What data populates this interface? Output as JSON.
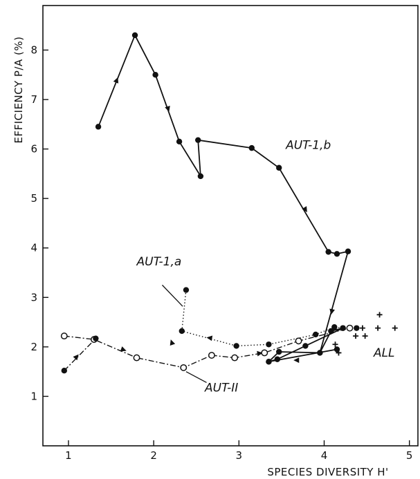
{
  "chart_data": {
    "type": "line",
    "xlabel": "SPECIES DIVERSITY H'",
    "ylabel": "EFFICIENCY P/A (%)",
    "xlim": [
      0.7,
      5.1
    ],
    "ylim": [
      0.0,
      8.9
    ],
    "x_ticks": [
      1,
      2,
      3,
      4,
      5
    ],
    "x_tick_labels": [
      "1",
      "2",
      "3",
      "4",
      "5"
    ],
    "y_ticks": [
      1,
      2,
      3,
      4,
      5,
      6,
      7,
      8
    ],
    "y_tick_labels": [
      "1",
      "2",
      "3",
      "4",
      "5",
      "6",
      "7",
      "8"
    ],
    "grid": false,
    "series": [
      {
        "name": "AUT-1,b",
        "marker": "filled-circle",
        "line_style": "solid",
        "color": "#111111",
        "points": [
          [
            1.35,
            6.45
          ],
          [
            1.78,
            8.3
          ],
          [
            2.02,
            7.5
          ],
          [
            2.3,
            6.15
          ],
          [
            2.55,
            5.45
          ],
          [
            2.52,
            6.18
          ],
          [
            3.15,
            6.02
          ],
          [
            3.47,
            5.62
          ],
          [
            4.05,
            3.92
          ],
          [
            4.15,
            3.88
          ],
          [
            4.28,
            3.93
          ],
          [
            3.95,
            1.88
          ]
        ]
      },
      {
        "name": "AUT-1,a",
        "marker": "filled-circle",
        "line_style": "dotted",
        "color": "#111111",
        "points": [
          [
            2.38,
            3.15
          ],
          [
            2.33,
            2.32
          ],
          [
            2.97,
            2.02
          ],
          [
            3.35,
            2.05
          ],
          [
            3.9,
            2.25
          ],
          [
            4.12,
            2.4
          ],
          [
            4.22,
            2.38
          ],
          [
            4.38,
            2.38
          ]
        ]
      },
      {
        "name": "AUT-II",
        "marker": "open-circle",
        "line_style": "dash-dot",
        "color": "#111111",
        "points": [
          [
            0.95,
            2.22
          ],
          [
            1.3,
            2.15
          ],
          [
            1.8,
            1.78
          ],
          [
            2.35,
            1.58
          ],
          [
            2.68,
            1.83
          ],
          [
            2.95,
            1.78
          ],
          [
            3.3,
            1.88
          ],
          [
            3.7,
            2.12
          ],
          [
            4.3,
            2.38
          ]
        ]
      },
      {
        "name": "",
        "marker": "filled-circle",
        "line_style": "dash-dot",
        "color": "#111111",
        "points": [
          [
            0.95,
            1.52
          ],
          [
            1.32,
            2.17
          ]
        ]
      },
      {
        "name": "",
        "marker": "filled-circle",
        "line_style": "solid",
        "color": "#111111",
        "points": [
          [
            3.35,
            1.7
          ],
          [
            3.47,
            1.9
          ],
          [
            3.95,
            1.88
          ],
          [
            4.08,
            2.32
          ],
          [
            4.22,
            2.38
          ],
          [
            3.78,
            2.02
          ],
          [
            3.45,
            1.75
          ],
          [
            3.35,
            1.7
          ],
          [
            4.15,
            1.95
          ]
        ]
      },
      {
        "name": "ALL",
        "marker": "plus",
        "line_style": "none",
        "color": "#111111",
        "points": [
          [
            4.13,
            2.05
          ],
          [
            4.37,
            2.22
          ],
          [
            4.48,
            2.22
          ],
          [
            4.45,
            2.38
          ],
          [
            4.63,
            2.38
          ],
          [
            4.83,
            2.38
          ],
          [
            4.65,
            2.65
          ],
          [
            4.17,
            1.88
          ]
        ]
      }
    ],
    "annotations": [
      {
        "text": "AUT-1,b",
        "x": 3.55,
        "y": 6.0
      },
      {
        "text": "AUT-1,a",
        "x": 1.8,
        "y": 3.65
      },
      {
        "text": "AUT-II",
        "x": 2.6,
        "y": 1.1
      },
      {
        "text": "ALL",
        "x": 4.58,
        "y": 1.8
      }
    ],
    "arrows": [
      {
        "from": [
          1.5,
          7.1
        ],
        "to": [
          1.58,
          7.45
        ]
      },
      {
        "from": [
          2.12,
          7.1
        ],
        "to": [
          2.18,
          6.75
        ]
      },
      {
        "from": [
          3.72,
          4.95
        ],
        "to": [
          3.8,
          4.72
        ]
      },
      {
        "from": [
          4.12,
          2.95
        ],
        "to": [
          4.08,
          2.65
        ]
      },
      {
        "from": [
          1.55,
          2.0
        ],
        "to": [
          1.68,
          1.92
        ]
      },
      {
        "from": [
          2.22,
          2.05
        ],
        "to": [
          2.2,
          2.15
        ]
      },
      {
        "from": [
          2.7,
          2.17
        ],
        "to": [
          2.62,
          2.19
        ]
      },
      {
        "from": [
          3.2,
          1.86
        ],
        "to": [
          3.28,
          1.88
        ]
      },
      {
        "from": [
          3.72,
          1.73
        ],
        "to": [
          3.64,
          1.73
        ]
      },
      {
        "from": [
          1.07,
          1.75
        ],
        "to": [
          1.12,
          1.85
        ]
      }
    ],
    "leader_lines": [
      {
        "from": [
          2.1,
          3.25
        ],
        "to": [
          2.34,
          2.82
        ]
      },
      {
        "from": [
          2.38,
          1.5
        ],
        "to": [
          2.62,
          1.28
        ]
      }
    ]
  }
}
